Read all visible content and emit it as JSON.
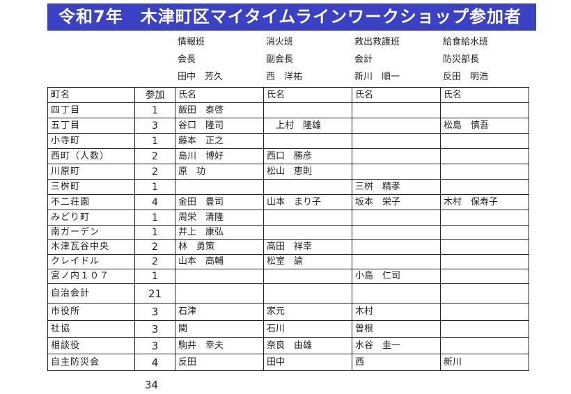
{
  "title": "令和7年　木津町区マイタイムラインワークショップ参加者",
  "teams": [
    {
      "name": "情報班",
      "role": "会長",
      "leader": "田中　芳久"
    },
    {
      "name": "消火班",
      "role": "副会長",
      "leader": "西　洋祐"
    },
    {
      "name": "救出救護班",
      "role": "会計",
      "leader": "新川　順一"
    },
    {
      "name": "給食給水班",
      "role": "防災部長",
      "leader": "反田　明浩"
    }
  ],
  "table": {
    "headers": [
      "町名",
      "参加",
      "氏名",
      "氏名",
      "氏名",
      "氏名"
    ],
    "rows": [
      [
        "四丁目",
        "1",
        "飯田　泰啓",
        "",
        "",
        ""
      ],
      [
        "五丁目",
        "3",
        "谷口　隆司",
        "　上村　隆雄",
        "",
        "松島　慎吾"
      ],
      [
        "小寺町",
        "1",
        "藤本　正之",
        "",
        "",
        ""
      ],
      [
        "西町（人数）",
        "2",
        "島川　博好",
        "西口　勝彦",
        "",
        ""
      ],
      [
        "川原町",
        "2",
        "原　功",
        "松山　恵則",
        "",
        ""
      ],
      [
        "三桝町",
        "1",
        "",
        "",
        "三桝　精孝",
        ""
      ],
      [
        "不二荘園",
        "4",
        "金田　豊司",
        "山本　まり子",
        "坂本　栄子",
        "木村　保寿子"
      ],
      [
        "みどり町",
        "1",
        "周栄　清隆",
        "",
        "",
        ""
      ],
      [
        "南ガーデン",
        "1",
        "井上　康弘",
        "",
        "",
        ""
      ],
      [
        "木津瓦谷中央",
        "2",
        "林　勇策",
        "高田　祥幸",
        "",
        ""
      ],
      [
        "クレイドル",
        "2",
        "山本　高輔",
        "松室　諭",
        "",
        ""
      ],
      [
        "宮ノ内１０７",
        "1",
        "",
        "",
        "小島　仁司",
        ""
      ],
      [
        "自治会計",
        "21",
        "",
        "",
        "",
        ""
      ],
      [
        "市役所",
        "3",
        "石津",
        "家元",
        "木村",
        ""
      ],
      [
        "社協",
        "3",
        "関",
        "石川",
        "曽根",
        ""
      ],
      [
        "相談役",
        "3",
        "駒井　幸夫",
        "奈良　由雄",
        "水谷　圭一",
        ""
      ],
      [
        "自主防災会",
        "4",
        "反田",
        "田中",
        "西",
        "新川"
      ]
    ],
    "grand_total": "34"
  },
  "colors": {
    "title_bar": "#3b41c4"
  }
}
